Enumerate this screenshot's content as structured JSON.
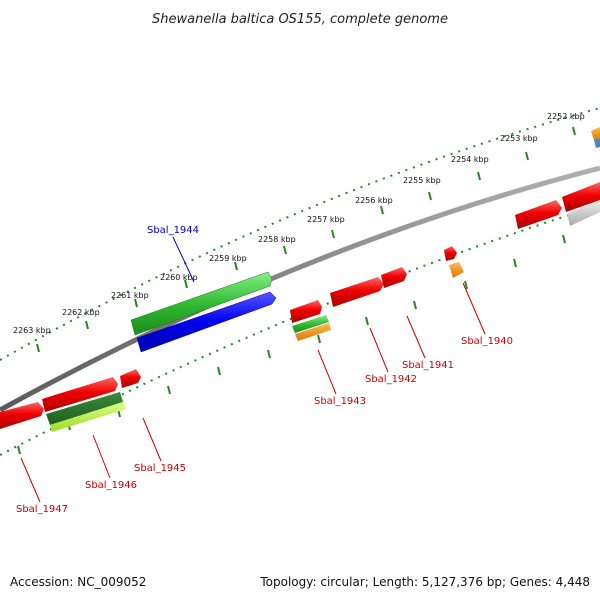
{
  "header": {
    "title": "Shewanella baltica OS155, complete genome"
  },
  "footer": {
    "accession": "Accession: NC_009052",
    "summary": "Topology: circular; Length: 5,127,376 bp; Genes: 4,448"
  },
  "ticks": [
    "2252 kbp",
    "2253 kbp",
    "2254 kbp",
    "2255 kbp",
    "2256 kbp",
    "2257 kbp",
    "2258 kbp",
    "2259 kbp",
    "2260 kbp",
    "2261 kbp",
    "2262 kbp",
    "2263 kbp"
  ],
  "genes": {
    "sbal_1940": "Sbal_1940",
    "sbal_1941": "Sbal_1941",
    "sbal_1942": "Sbal_1942",
    "sbal_1943": "Sbal_1943",
    "sbal_1944": "Sbal_1944",
    "sbal_1945": "Sbal_1945",
    "sbal_1946": "Sbal_1946",
    "sbal_1947": "Sbal_1947"
  },
  "colors": {
    "cds": "#e00000",
    "rrna": "#22aa22",
    "trna": "#ee8800",
    "blue_feature": "#0000ee",
    "gray_feature": "#bbbbbb",
    "backbone": "#808080",
    "tick_dots": "#228822",
    "label_red": "#cc0000",
    "label_blue": "#0000cc"
  }
}
